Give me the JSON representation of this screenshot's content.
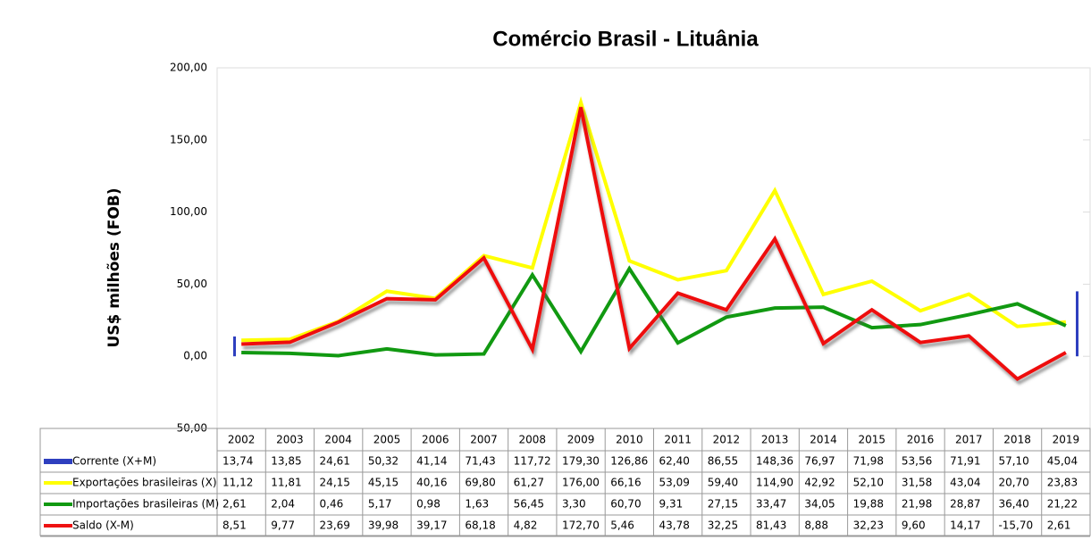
{
  "chart_data": {
    "type": "line",
    "title": "Comércio Brasil - Lituânia",
    "y_label": "US$ milhões (FOB)",
    "categories": [
      "2002",
      "2003",
      "2004",
      "2005",
      "2006",
      "2007",
      "2008",
      "2009",
      "2010",
      "2011",
      "2012",
      "2013",
      "2014",
      "2015",
      "2016",
      "2017",
      "2018",
      "2019"
    ],
    "ylim": [
      -50,
      200
    ],
    "yticks": [
      {
        "value": -50,
        "label": "-50,00"
      },
      {
        "value": 0,
        "label": "0,00"
      },
      {
        "value": 50,
        "label": "50,00"
      },
      {
        "value": 100,
        "label": "100,00"
      },
      {
        "value": 150,
        "label": "150,00"
      },
      {
        "value": 200,
        "label": "200,00"
      }
    ],
    "grid": false,
    "series": [
      {
        "name": "Corrente (X+M)",
        "kind": "bar",
        "color": "#2e3fbf",
        "values": [
          13.74,
          13.85,
          24.61,
          50.32,
          41.14,
          71.43,
          117.72,
          179.3,
          126.86,
          62.4,
          86.55,
          148.36,
          76.97,
          71.98,
          53.56,
          71.91,
          57.1,
          45.04
        ],
        "value_labels": [
          "13,74",
          "13,85",
          "24,61",
          "50,32",
          "41,14",
          "71,43",
          "117,72",
          "179,30",
          "126,86",
          "62,40",
          "86,55",
          "148,36",
          "76,97",
          "71,98",
          "53,56",
          "71,91",
          "57,10",
          "45,04"
        ]
      },
      {
        "name": "Exportações brasileiras (X)",
        "kind": "line",
        "color": "#ffff00",
        "values": [
          11.12,
          11.81,
          24.15,
          45.15,
          40.16,
          69.8,
          61.27,
          176.0,
          66.16,
          53.09,
          59.4,
          114.9,
          42.92,
          52.1,
          31.58,
          43.04,
          20.7,
          23.83
        ],
        "value_labels": [
          "11,12",
          "11,81",
          "24,15",
          "45,15",
          "40,16",
          "69,80",
          "61,27",
          "176,00",
          "66,16",
          "53,09",
          "59,40",
          "114,90",
          "42,92",
          "52,10",
          "31,58",
          "43,04",
          "20,70",
          "23,83"
        ]
      },
      {
        "name": "Importações brasileiras (M)",
        "kind": "line",
        "color": "#119911",
        "values": [
          2.61,
          2.04,
          0.46,
          5.17,
          0.98,
          1.63,
          56.45,
          3.3,
          60.7,
          9.31,
          27.15,
          33.47,
          34.05,
          19.88,
          21.98,
          28.87,
          36.4,
          21.22
        ],
        "value_labels": [
          "2,61",
          "2,04",
          "0,46",
          "5,17",
          "0,98",
          "1,63",
          "56,45",
          "3,30",
          "60,70",
          "9,31",
          "27,15",
          "33,47",
          "34,05",
          "19,88",
          "21,98",
          "28,87",
          "36,40",
          "21,22"
        ]
      },
      {
        "name": "Saldo (X-M)",
        "kind": "line",
        "color": "#ee1111",
        "values": [
          8.51,
          9.77,
          23.69,
          39.98,
          39.17,
          68.18,
          4.82,
          172.7,
          5.46,
          43.78,
          32.25,
          81.43,
          8.88,
          32.23,
          9.6,
          14.17,
          -15.7,
          2.61
        ],
        "value_labels": [
          "8,51",
          "9,77",
          "23,69",
          "39,98",
          "39,17",
          "68,18",
          "4,82",
          "172,70",
          "5,46",
          "43,78",
          "32,25",
          "81,43",
          "8,88",
          "32,23",
          "9,60",
          "14,17",
          "-15,70",
          "2,61"
        ]
      }
    ]
  }
}
